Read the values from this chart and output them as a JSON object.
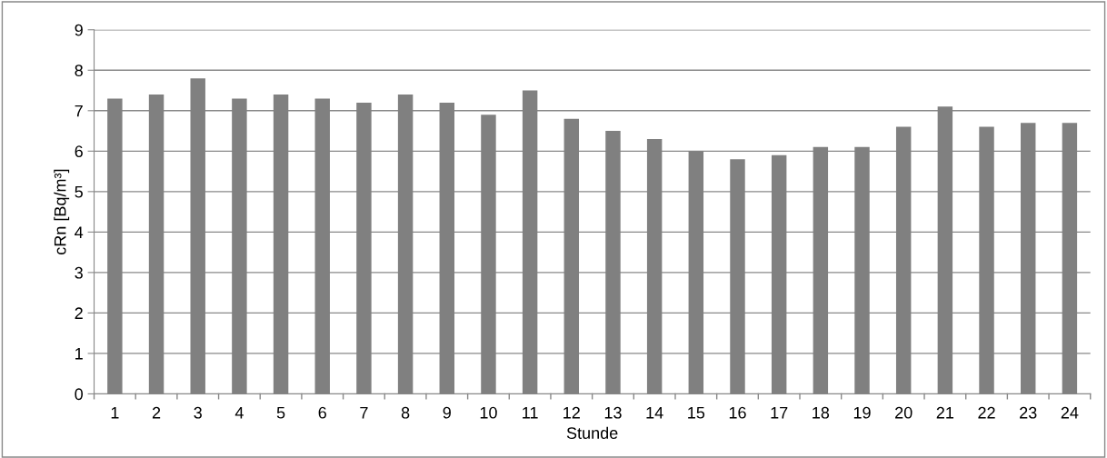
{
  "chart_data": {
    "type": "bar",
    "xlabel": "Stunde",
    "ylabel": "cRn [Bq/m³]",
    "categories": [
      "1",
      "2",
      "3",
      "4",
      "5",
      "6",
      "7",
      "8",
      "9",
      "10",
      "11",
      "12",
      "13",
      "14",
      "15",
      "16",
      "17",
      "18",
      "19",
      "20",
      "21",
      "22",
      "23",
      "24"
    ],
    "values": [
      7.3,
      7.4,
      7.8,
      7.3,
      7.4,
      7.3,
      7.2,
      7.4,
      7.2,
      6.9,
      7.5,
      6.8,
      6.5,
      6.3,
      6.0,
      5.8,
      5.9,
      6.1,
      6.1,
      6.6,
      7.1,
      6.6,
      6.7,
      6.7
    ],
    "color": "#808080",
    "ylim": [
      0,
      9
    ],
    "yticks": [
      0,
      1,
      2,
      3,
      4,
      5,
      6,
      7,
      8,
      9
    ],
    "grid": "y",
    "legend": false
  }
}
